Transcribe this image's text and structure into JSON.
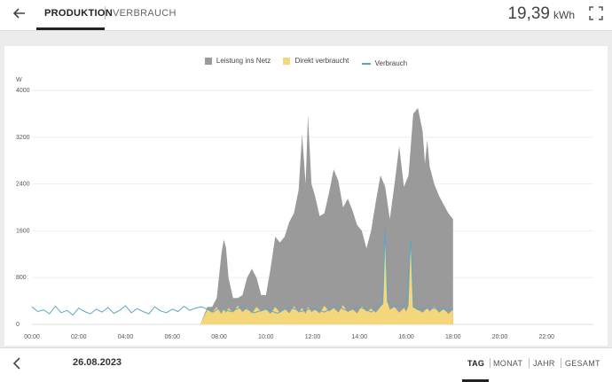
{
  "header": {
    "back_icon": "arrow-left-icon",
    "tabs": [
      {
        "label": "PRODUKTION",
        "active": true
      },
      {
        "label": "VERBRAUCH",
        "active": false
      }
    ],
    "energy_value": "19,39",
    "energy_unit": "kWh",
    "fullscreen_icon": "fullscreen-icon"
  },
  "legend": [
    {
      "label": "Leistung ins Netz",
      "color": "#9a9a9a"
    },
    {
      "label": "Direkt verbraucht",
      "color": "#f4d77a"
    },
    {
      "label": "Verbrauch",
      "color": "#5ba8c4"
    }
  ],
  "footer": {
    "prev_icon": "chevron-left-icon",
    "date": "26.08.2023",
    "periods": [
      "TAG",
      "MONAT",
      "JAHR",
      "GESAMT"
    ],
    "active_period": "TAG"
  },
  "chart_data": {
    "type": "area",
    "ylabel": "W",
    "ylim": [
      0,
      4000
    ],
    "yticks": [
      "0",
      "800",
      "1600",
      "2400",
      "3200",
      "4000"
    ],
    "xlim": [
      0,
      24
    ],
    "xticks": [
      "00:00",
      "02:00",
      "04:00",
      "06:00",
      "08:00",
      "10:00",
      "12:00",
      "14:00",
      "16:00",
      "18:00",
      "20:00",
      "22:00"
    ],
    "grid": true,
    "legend_position": "top-center",
    "series": [
      {
        "name": "Leistung ins Netz",
        "stacked_total": true,
        "x": [
          7.2,
          7.5,
          7.7,
          7.9,
          8.1,
          8.2,
          8.3,
          8.4,
          8.6,
          8.8,
          9.0,
          9.2,
          9.4,
          9.6,
          9.8,
          10.0,
          10.2,
          10.4,
          10.6,
          10.8,
          11.0,
          11.2,
          11.4,
          11.55,
          11.7,
          11.8,
          11.95,
          12.1,
          12.3,
          12.5,
          12.7,
          12.9,
          13.1,
          13.3,
          13.5,
          13.7,
          13.9,
          14.1,
          14.3,
          14.5,
          14.7,
          14.9,
          15.1,
          15.3,
          15.5,
          15.7,
          15.9,
          16.1,
          16.3,
          16.5,
          16.7,
          16.8,
          16.9,
          17.0,
          17.2,
          17.4,
          17.6,
          17.8,
          18.0
        ],
        "values": [
          0,
          300,
          300,
          450,
          1200,
          1450,
          1300,
          800,
          450,
          450,
          500,
          800,
          950,
          800,
          500,
          500,
          950,
          1500,
          1400,
          1500,
          1750,
          1900,
          2300,
          3250,
          2400,
          3580,
          2400,
          2200,
          1850,
          1900,
          2250,
          2650,
          2450,
          2000,
          2150,
          1950,
          1700,
          1600,
          1300,
          1600,
          2100,
          2550,
          2350,
          1800,
          2400,
          3050,
          2350,
          2550,
          3600,
          3700,
          3300,
          2750,
          3150,
          2700,
          2400,
          2200,
          2050,
          1900,
          1800
        ]
      },
      {
        "name": "Direkt verbraucht",
        "x": [
          7.2,
          7.5,
          7.7,
          7.9,
          8.1,
          8.2,
          8.3,
          8.4,
          8.6,
          8.8,
          9.0,
          9.2,
          9.4,
          9.6,
          9.8,
          10.0,
          10.2,
          10.4,
          10.6,
          10.8,
          11.0,
          11.2,
          11.4,
          11.55,
          11.7,
          11.8,
          11.95,
          12.1,
          12.3,
          12.5,
          12.7,
          12.9,
          13.1,
          13.3,
          13.5,
          13.7,
          13.9,
          14.1,
          14.3,
          14.5,
          14.7,
          14.9,
          15.0,
          15.1,
          15.2,
          15.3,
          15.5,
          15.7,
          15.9,
          16.0,
          16.1,
          16.2,
          16.3,
          16.5,
          16.7,
          16.9,
          17.0,
          17.2,
          17.4,
          17.6,
          17.8,
          18.0
        ],
        "values": [
          0,
          250,
          200,
          300,
          180,
          260,
          200,
          280,
          200,
          320,
          210,
          280,
          190,
          300,
          220,
          260,
          180,
          300,
          200,
          270,
          190,
          310,
          200,
          280,
          180,
          300,
          210,
          250,
          190,
          320,
          220,
          280,
          200,
          330,
          210,
          260,
          190,
          310,
          220,
          270,
          200,
          300,
          350,
          1620,
          380,
          250,
          300,
          200,
          280,
          220,
          320,
          1450,
          300,
          250,
          200,
          280,
          220,
          300,
          200,
          260,
          180,
          250
        ]
      },
      {
        "name": "Verbrauch",
        "x": [
          0.0,
          0.25,
          0.5,
          0.75,
          1.0,
          1.25,
          1.5,
          1.75,
          2.0,
          2.25,
          2.5,
          2.75,
          3.0,
          3.25,
          3.5,
          3.75,
          4.0,
          4.25,
          4.5,
          4.75,
          5.0,
          5.25,
          5.5,
          5.75,
          6.0,
          6.25,
          6.5,
          6.75,
          7.0,
          7.25,
          7.5,
          7.75,
          8.0,
          8.5,
          9.0,
          9.5,
          10.0,
          10.5,
          11.0,
          11.5,
          12.0,
          12.5,
          13.0,
          13.5,
          14.0,
          14.5,
          15.0,
          15.1,
          15.2,
          15.5,
          16.0,
          16.2,
          16.3,
          16.5,
          17.0,
          17.5,
          18.0
        ],
        "values": [
          300,
          220,
          250,
          180,
          310,
          200,
          240,
          160,
          280,
          220,
          180,
          260,
          210,
          290,
          190,
          240,
          320,
          200,
          270,
          220,
          180,
          300,
          230,
          200,
          260,
          220,
          310,
          240,
          280,
          300,
          260,
          210,
          280,
          220,
          300,
          200,
          260,
          190,
          300,
          220,
          280,
          210,
          320,
          230,
          300,
          210,
          350,
          1620,
          380,
          300,
          320,
          1450,
          300,
          250,
          280,
          260,
          250
        ]
      }
    ]
  }
}
